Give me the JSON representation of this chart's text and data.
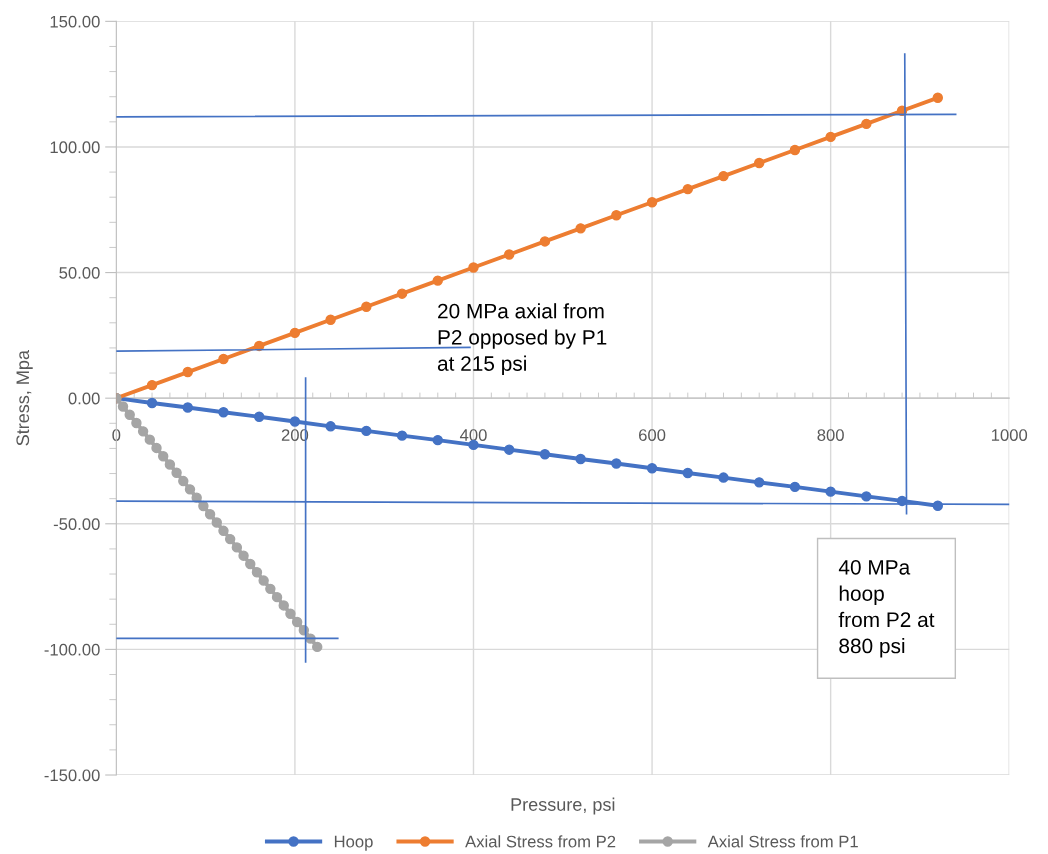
{
  "chart_data": {
    "type": "line",
    "xlabel": "Pressure, psi",
    "ylabel": "Stress, Mpa",
    "xlim": [
      0,
      1000
    ],
    "ylim": [
      -150,
      150
    ],
    "xticks": [
      0,
      200,
      400,
      600,
      800,
      1000
    ],
    "yticks": [
      {
        "value": -150,
        "label": "-150.00"
      },
      {
        "value": -100,
        "label": "-100.00"
      },
      {
        "value": -50,
        "label": "-50.00"
      },
      {
        "value": 0,
        "label": "0.00"
      },
      {
        "value": 50,
        "label": "50.00"
      },
      {
        "value": 100,
        "label": "100.00"
      },
      {
        "value": 150,
        "label": "150.00"
      }
    ],
    "grid": true,
    "legend": "bottom",
    "marker": "circle",
    "series": [
      {
        "name": "Hoop",
        "color": "#4472c4",
        "x": [
          0,
          40,
          80,
          120,
          160,
          200,
          240,
          280,
          320,
          360,
          400,
          440,
          480,
          520,
          560,
          600,
          640,
          680,
          720,
          760,
          800,
          840,
          880,
          920
        ],
        "values": [
          0,
          -1.9,
          -3.7,
          -5.6,
          -7.4,
          -9.3,
          -11.2,
          -13.0,
          -14.9,
          -16.7,
          -18.6,
          -20.5,
          -22.3,
          -24.2,
          -26.0,
          -27.9,
          -29.8,
          -31.6,
          -33.5,
          -35.3,
          -37.2,
          -39.1,
          -40.9,
          -42.8
        ]
      },
      {
        "name": "Axial Stress from P2",
        "color": "#ed7d31",
        "x": [
          0,
          40,
          80,
          120,
          160,
          200,
          240,
          280,
          320,
          360,
          400,
          440,
          480,
          520,
          560,
          600,
          640,
          680,
          720,
          760,
          800,
          840,
          880,
          920
        ],
        "values": [
          0,
          5.2,
          10.4,
          15.6,
          20.8,
          26.0,
          31.2,
          36.4,
          41.6,
          46.8,
          52.0,
          57.2,
          62.4,
          67.6,
          72.8,
          78.0,
          83.2,
          88.4,
          93.6,
          98.8,
          104.0,
          109.2,
          114.4,
          119.6
        ]
      },
      {
        "name": "Axial Stress from P1",
        "color": "#a5a5a5",
        "x": [
          0,
          7.5,
          15,
          22.5,
          30,
          37.5,
          45,
          52.5,
          60,
          67.5,
          75,
          82.5,
          90,
          97.5,
          105,
          112.5,
          120,
          127.5,
          135,
          142.5,
          150,
          157.5,
          165,
          172.5,
          180,
          187.5,
          195,
          202.5,
          210,
          217.5,
          225
        ],
        "values": [
          0,
          -3.3,
          -6.6,
          -9.9,
          -13.2,
          -16.5,
          -19.8,
          -23.1,
          -26.4,
          -29.7,
          -33.0,
          -36.3,
          -39.6,
          -42.9,
          -46.2,
          -49.5,
          -52.8,
          -56.1,
          -59.4,
          -62.7,
          -66.0,
          -69.3,
          -72.6,
          -75.9,
          -79.2,
          -82.5,
          -85.8,
          -89.1,
          -92.4,
          -95.7,
          -99.0
        ]
      },
      {
        "color": "#4472c4",
        "marker": "none",
        "x": [
          0,
          940
        ],
        "values": [
          112,
          113
        ]
      },
      {
        "color": "#4472c4",
        "marker": "none",
        "x": [
          0,
          396
        ],
        "values": [
          18.7,
          20.2
        ]
      },
      {
        "color": "#4472c4",
        "marker": "none",
        "x": [
          0,
          1000
        ],
        "values": [
          -41,
          -42.3
        ]
      },
      {
        "color": "#4472c4",
        "marker": "none",
        "x": [
          0,
          248
        ],
        "values": [
          -95.6,
          -95.6
        ]
      },
      {
        "color": "#4472c4",
        "marker": "none",
        "x": [
          883,
          885
        ],
        "values": [
          137,
          -46
        ]
      },
      {
        "color": "#4472c4",
        "marker": "none",
        "x": [
          212,
          212
        ],
        "values": [
          8,
          -105
        ]
      }
    ],
    "annotations": [
      "20 MPa axial from\nP2 opposed by P1\nat 215 psi",
      "40 MPa\nhoop\nfrom P2 at\n880 psi"
    ]
  }
}
